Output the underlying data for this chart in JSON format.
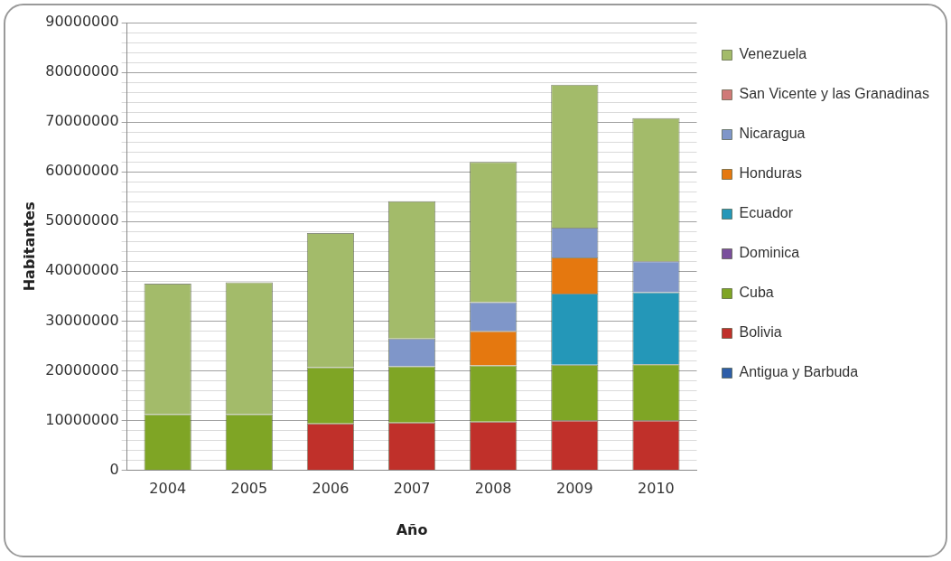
{
  "chart_data": {
    "type": "bar",
    "stacked": true,
    "xlabel": "Año",
    "ylabel": "Habitantes",
    "categories": [
      "2004",
      "2005",
      "2006",
      "2007",
      "2008",
      "2009",
      "2010"
    ],
    "series": [
      {
        "name": "Antigua y Barbuda",
        "color": "#2e5ea8",
        "values": [
          null,
          null,
          null,
          null,
          null,
          null,
          null
        ]
      },
      {
        "name": "Bolivia",
        "color": "#c0302a",
        "values": [
          null,
          null,
          9400000,
          9600000,
          9800000,
          10000000,
          10000000
        ]
      },
      {
        "name": "Cuba",
        "color": "#7fa525",
        "values": [
          11300000,
          11300000,
          11300000,
          11300000,
          11300000,
          11200000,
          11300000
        ]
      },
      {
        "name": "Dominica",
        "color": "#7a4f9c",
        "values": [
          null,
          null,
          null,
          null,
          null,
          null,
          null
        ]
      },
      {
        "name": "Ecuador",
        "color": "#2497b8",
        "values": [
          null,
          null,
          null,
          null,
          null,
          14300000,
          14500000
        ]
      },
      {
        "name": "Honduras",
        "color": "#e5780f",
        "values": [
          null,
          null,
          null,
          null,
          6900000,
          7300000,
          null
        ]
      },
      {
        "name": "Nicaragua",
        "color": "#7f96c9",
        "values": [
          null,
          null,
          null,
          5600000,
          5800000,
          6000000,
          6200000
        ]
      },
      {
        "name": "San Vicente y las Granadinas",
        "color": "#d07a78",
        "values": [
          null,
          null,
          null,
          null,
          null,
          null,
          null
        ]
      },
      {
        "name": "Venezuela",
        "color": "#a3bb6a",
        "values": [
          26200000,
          26500000,
          27000000,
          27600000,
          28200000,
          28700000,
          28800000
        ]
      }
    ],
    "ylim": [
      0,
      90000000
    ],
    "yticks": [
      0,
      {
        "value": 2000000,
        "label": null
      },
      {
        "value": 4000000,
        "label": null
      },
      {
        "value": 6000000,
        "label": null
      },
      {
        "value": 8000000,
        "label": null
      },
      10000000,
      {
        "value": 12000000,
        "label": null
      },
      {
        "value": 14000000,
        "label": null
      },
      {
        "value": 16000000,
        "label": null
      },
      {
        "value": 18000000,
        "label": null
      },
      20000000,
      {
        "value": 22000000,
        "label": null
      },
      {
        "value": 24000000,
        "label": null
      },
      {
        "value": 26000000,
        "label": null
      },
      {
        "value": 28000000,
        "label": null
      },
      30000000,
      {
        "value": 32000000,
        "label": null
      },
      {
        "value": 34000000,
        "label": null
      },
      {
        "value": 36000000,
        "label": null
      },
      {
        "value": 38000000,
        "label": null
      },
      40000000,
      {
        "value": 42000000,
        "label": null
      },
      {
        "value": 44000000,
        "label": null
      },
      {
        "value": 46000000,
        "label": null
      },
      {
        "value": 48000000,
        "label": null
      },
      50000000,
      {
        "value": 52000000,
        "label": null
      },
      {
        "value": 54000000,
        "label": null
      },
      {
        "value": 56000000,
        "label": null
      },
      {
        "value": 58000000,
        "label": null
      },
      60000000,
      {
        "value": 62000000,
        "label": null
      },
      {
        "value": 64000000,
        "label": null
      },
      {
        "value": 66000000,
        "label": null
      },
      {
        "value": 68000000,
        "label": null
      },
      70000000,
      {
        "value": 72000000,
        "label": null
      },
      {
        "value": 74000000,
        "label": null
      },
      {
        "value": 76000000,
        "label": null
      },
      {
        "value": 78000000,
        "label": null
      },
      80000000,
      {
        "value": 82000000,
        "label": null
      },
      {
        "value": 84000000,
        "label": null
      },
      {
        "value": 86000000,
        "label": null
      },
      {
        "value": 88000000,
        "label": null
      },
      90000000
    ],
    "grid": "y",
    "legend": "right"
  }
}
